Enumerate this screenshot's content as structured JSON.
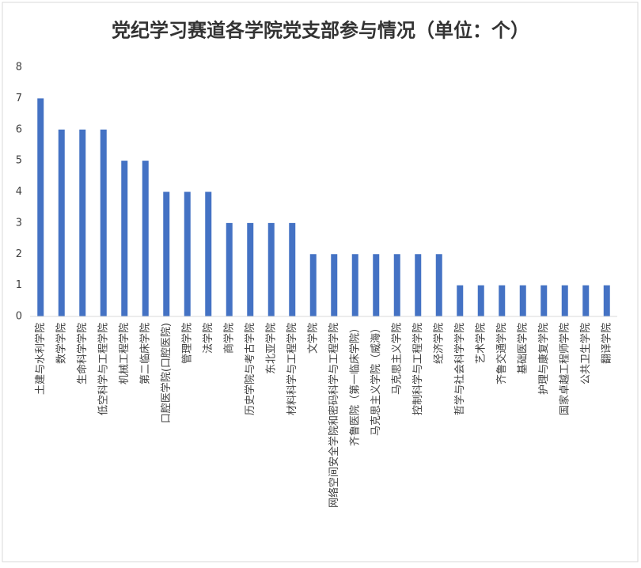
{
  "chart_data": {
    "type": "bar",
    "title": "党纪学习赛道各学院党支部参与情况（单位：个）",
    "categories": [
      "土建与水利学院",
      "数学学院",
      "生命科学学院",
      "低空科学与工程学院",
      "机械工程学院",
      "第二临床学院",
      "口腔医学院(口腔医院)",
      "管理学院",
      "法学院",
      "商学院",
      "历史学院与考古学院",
      "东北亚学院",
      "材料科学与工程学院",
      "文学院",
      "网络空间安全学院和密码科学与工程学院",
      "齐鲁医院（第一临床学院）",
      "马克思主义学院（威海）",
      "马克思主义学院",
      "控制科学与工程学院",
      "经济学院",
      "哲学与社会科学学院",
      "艺术学院",
      "齐鲁交通学院",
      "基础医学院",
      "护理与康复学院",
      "国家卓越工程师学院",
      "公共卫生学院",
      "翻译学院"
    ],
    "values": [
      7,
      6,
      6,
      6,
      5,
      5,
      4,
      4,
      4,
      3,
      3,
      3,
      3,
      2,
      2,
      2,
      2,
      2,
      2,
      2,
      1,
      1,
      1,
      1,
      1,
      1,
      1,
      1
    ],
    "color": "#4472c4",
    "ylim": [
      0,
      8
    ],
    "yticks": [
      0,
      1,
      2,
      3,
      4,
      5,
      6,
      7,
      8
    ],
    "grid": false
  }
}
